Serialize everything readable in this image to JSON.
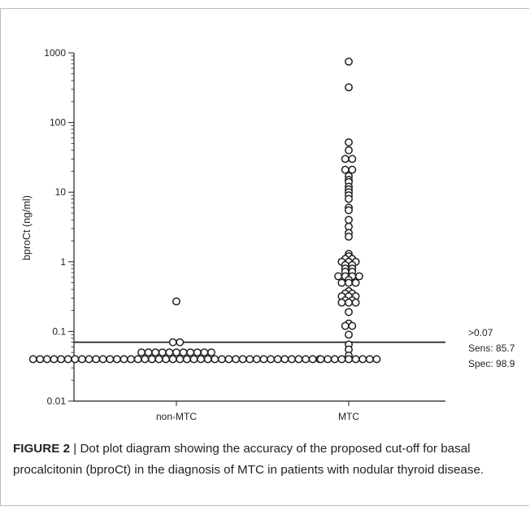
{
  "caption": {
    "label": "FIGURE 2",
    "separator": " | ",
    "text": "Dot plot diagram showing the accuracy of the proposed cut-off for basal procalcitonin (bproCt) in the diagnosis of MTC in patients with nodular thyroid disease."
  },
  "chart_data": {
    "type": "scatter",
    "ylabel": "bproCt (ng/ml)",
    "xlabel": "",
    "yscale": "log",
    "ylim": [
      0.01,
      1000
    ],
    "yticks": [
      "0.01",
      "0.1",
      "1",
      "10",
      "100",
      "1000"
    ],
    "categories": [
      "non-MTC",
      "MTC"
    ],
    "cutoff": {
      "value": 0.07,
      "label": ">0.07",
      "sens": "Sens: 85.7",
      "spec": "Spec: 98.9"
    },
    "series": [
      {
        "category": "non-MTC",
        "values": [
          0.27,
          0.07,
          0.07,
          0.05,
          0.05,
          0.05,
          0.05,
          0.05,
          0.05,
          0.05,
          0.05,
          0.05,
          0.05,
          0.05,
          0.04,
          0.04,
          0.04,
          0.04,
          0.04,
          0.04,
          0.04,
          0.04,
          0.04,
          0.04,
          0.04,
          0.04,
          0.04,
          0.04,
          0.04,
          0.04,
          0.04,
          0.04,
          0.04,
          0.04,
          0.04,
          0.04,
          0.04,
          0.04,
          0.04,
          0.04,
          0.04,
          0.04,
          0.04,
          0.04,
          0.04,
          0.04,
          0.04,
          0.04,
          0.04,
          0.04,
          0.04,
          0.04,
          0.04,
          0.04,
          0.04,
          0.04
        ]
      },
      {
        "category": "MTC",
        "values": [
          750,
          320,
          52,
          40,
          30,
          30,
          21,
          20,
          17,
          15,
          14,
          12,
          11,
          10,
          9,
          8,
          6,
          5.5,
          4,
          3.2,
          2.6,
          2.3,
          1.3,
          1.2,
          1.1,
          1.1,
          1.0,
          1.0,
          0.95,
          0.9,
          0.85,
          0.8,
          0.75,
          0.72,
          0.7,
          0.62,
          0.6,
          0.6,
          0.6,
          0.55,
          0.5,
          0.5,
          0.5,
          0.38,
          0.35,
          0.33,
          0.32,
          0.3,
          0.3,
          0.28,
          0.27,
          0.26,
          0.25,
          0.25,
          0.19,
          0.13,
          0.12,
          0.12,
          0.09,
          0.065,
          0.055,
          0.045,
          0.04,
          0.04,
          0.04,
          0.04,
          0.04,
          0.04,
          0.04,
          0.04,
          0.04
        ]
      }
    ]
  }
}
